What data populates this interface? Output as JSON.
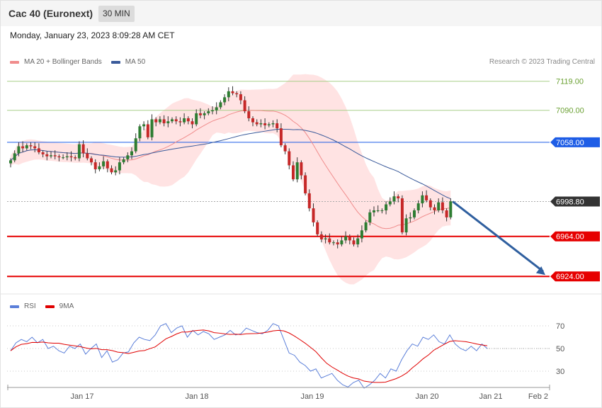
{
  "header": {
    "instrument": "Cac 40 (Euronext)",
    "timeframe": "30 MIN",
    "datetime": "Monday, January 23, 2023 8:09:28 AM CET"
  },
  "legend": {
    "items": [
      {
        "label": "MA 20 + Bollinger Bands",
        "color": "#f08c8c"
      },
      {
        "label": "MA 50",
        "color": "#3a5a9a"
      }
    ],
    "credit": "Research © 2023 Trading Central"
  },
  "rsi_legend": {
    "items": [
      {
        "label": "RSI",
        "color": "#5b7fd9"
      },
      {
        "label": "9MA",
        "color": "#e00000"
      }
    ]
  },
  "chart_data": [
    {
      "type": "candlestick",
      "x_labels": [
        "Jan 17",
        "Jan 18",
        "Jan 19",
        "Jan 20",
        "Jan 21",
        "Feb 2"
      ],
      "y_range": [
        6910,
        7128
      ],
      "levels": [
        {
          "label": "7119.00",
          "value": 7119,
          "color": "#a8cf8a",
          "label_color": "#6aa032"
        },
        {
          "label": "7090.00",
          "value": 7090,
          "color": "#a8cf8a",
          "label_color": "#6aa032"
        },
        {
          "label": "7058.00",
          "value": 7058,
          "color": "#1e5de6",
          "label_bg": "#1e5de6"
        },
        {
          "label": "6998.80",
          "value": 6998.8,
          "color": "#aaaaaa",
          "label_bg": "#333333"
        },
        {
          "label": "6964.00",
          "value": 6964,
          "color": "#e60000",
          "label_bg": "#e60000"
        },
        {
          "label": "6924.00",
          "value": 6924,
          "color": "#e60000",
          "label_bg": "#e60000"
        }
      ],
      "forecast": {
        "from": 6998.8,
        "to": 6924
      },
      "closes": [
        7040,
        7047,
        7054,
        7052,
        7055,
        7054,
        7052,
        7048,
        7046,
        7044,
        7045,
        7044,
        7043,
        7043,
        7044,
        7043,
        7042,
        7056,
        7047,
        7042,
        7038,
        7031,
        7034,
        7039,
        7032,
        7028,
        7030,
        7038,
        7041,
        7045,
        7049,
        7062,
        7074,
        7076,
        7063,
        7081,
        7078,
        7081,
        7077,
        7079,
        7081,
        7079,
        7078,
        7082,
        7079,
        7076,
        7087,
        7085,
        7087,
        7089,
        7090,
        7093,
        7098,
        7103,
        7109,
        7107,
        7106,
        7100,
        7089,
        7082,
        7078,
        7076,
        7077,
        7075,
        7076,
        7077,
        7072,
        7055,
        7049,
        7035,
        7021,
        7038,
        7025,
        7007,
        6992,
        6978,
        6966,
        6961,
        6962,
        6958,
        6958,
        6956,
        6960,
        6964,
        6960,
        6956,
        6962,
        6970,
        6978,
        6988,
        6990,
        6990,
        6990,
        6996,
        6999,
        7004,
        7002,
        6968,
        6982,
        6983,
        6990,
        6997,
        7005,
        7000,
        6993,
        6990,
        6998,
        6990,
        6983,
        6999
      ],
      "series": [
        {
          "name": "MA 20 + Bollinger Bands"
        },
        {
          "name": "MA 50"
        }
      ]
    },
    {
      "type": "line",
      "y_ticks": [
        70,
        50,
        30
      ],
      "series": [
        {
          "name": "RSI",
          "values": [
            48,
            55,
            58,
            56,
            60,
            55,
            58,
            50,
            52,
            48,
            46,
            52,
            50,
            54,
            45,
            50,
            54,
            42,
            48,
            38,
            40,
            46,
            47,
            55,
            60,
            58,
            57,
            62,
            70,
            72,
            64,
            68,
            70,
            60,
            66,
            62,
            65,
            63,
            58,
            60,
            62,
            66,
            62,
            63,
            68,
            66,
            64,
            63,
            66,
            72,
            70,
            58,
            46,
            44,
            38,
            35,
            30,
            32,
            24,
            26,
            28,
            22,
            18,
            16,
            20,
            22,
            15,
            18,
            22,
            28,
            24,
            32,
            30,
            40,
            48,
            54,
            52,
            60,
            58,
            62,
            56,
            54,
            62,
            54,
            50,
            48,
            52,
            48,
            54,
            50
          ]
        },
        {
          "name": "9MA"
        }
      ]
    }
  ]
}
